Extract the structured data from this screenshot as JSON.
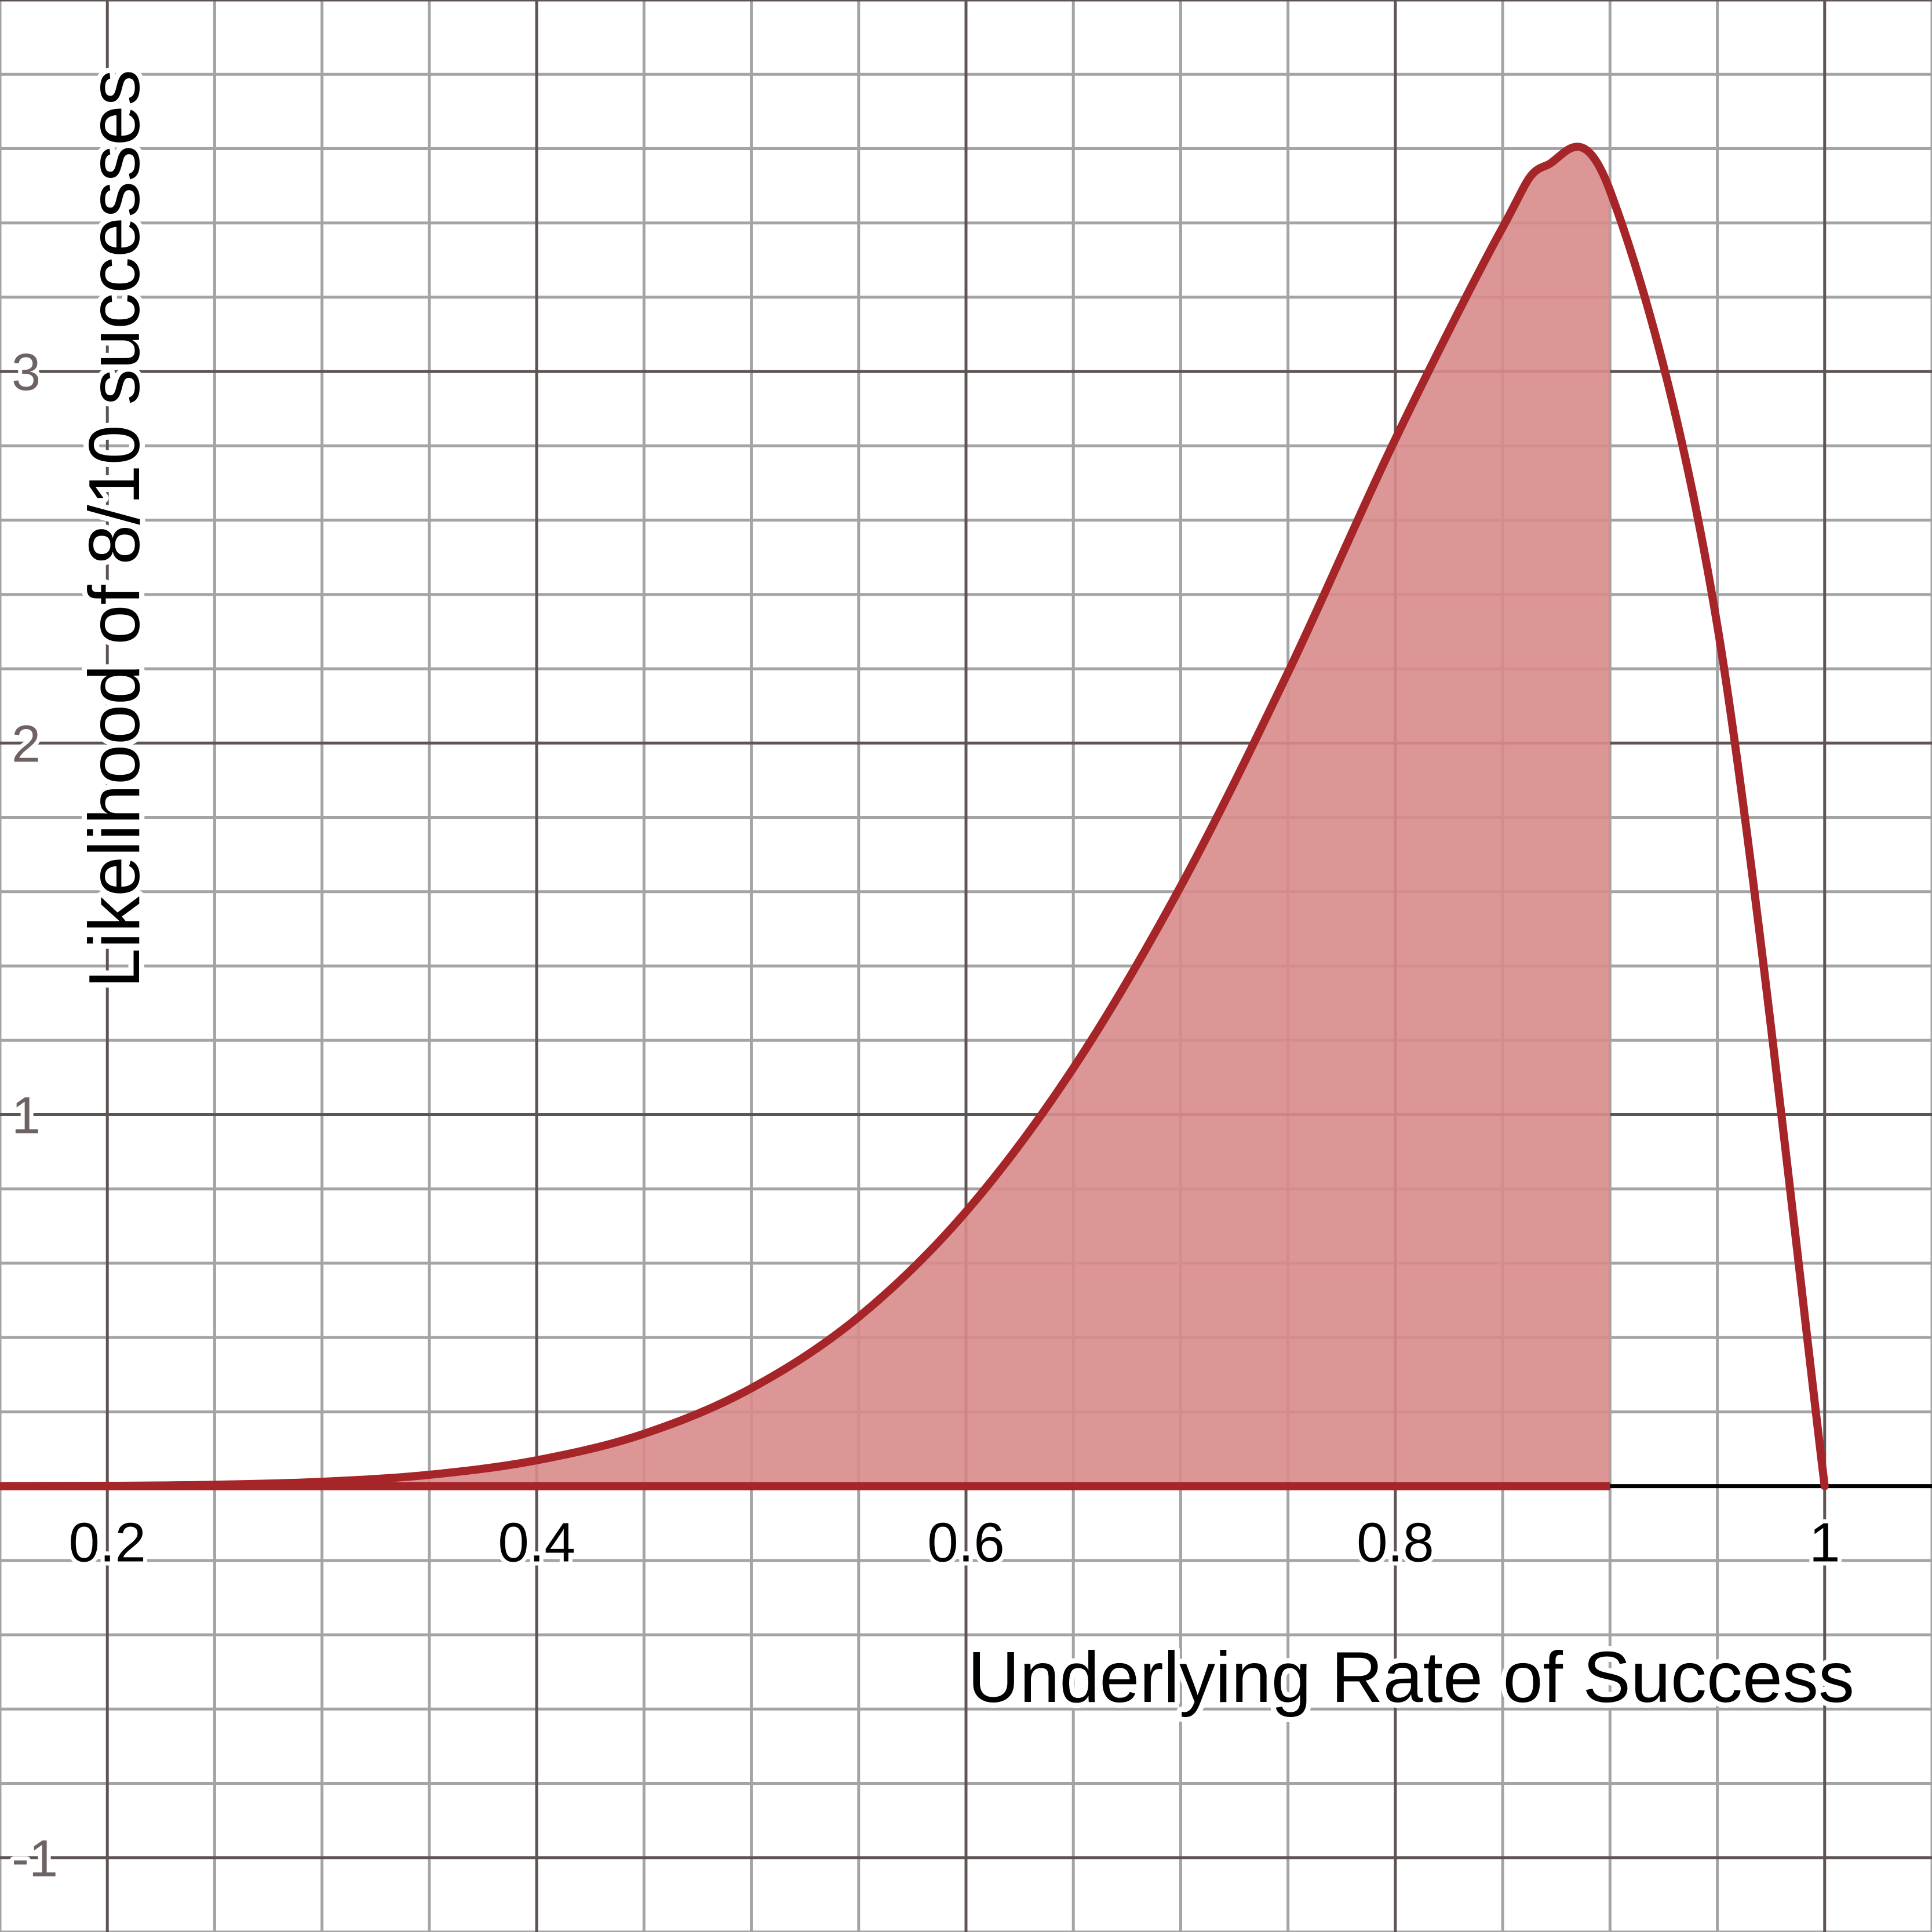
{
  "chart_data": {
    "type": "area",
    "xlabel": "Underlying Rate of Success",
    "ylabel": "Likelihood of 8/10 successes",
    "xlim": [
      0.15,
      1.05
    ],
    "ylim": [
      -1.2,
      4.0
    ],
    "x_ticks": [
      {
        "value": 0.2,
        "label": "0.2"
      },
      {
        "value": 0.4,
        "label": "0.4"
      },
      {
        "value": 0.6,
        "label": "0.6"
      },
      {
        "value": 0.8,
        "label": "0.8"
      },
      {
        "value": 1.0,
        "label": "1"
      }
    ],
    "y_ticks": [
      {
        "value": 3,
        "label": "3"
      },
      {
        "value": 2,
        "label": "2"
      },
      {
        "value": 1,
        "label": "1"
      },
      {
        "value": -1,
        "label": "-1"
      }
    ],
    "grid": true,
    "major_grid_x_step": 0.2,
    "minor_grid_x_step": 0.05,
    "major_grid_y_step": 1,
    "minor_grid_y_step": 0.2,
    "shaded_interval": [
      0.15,
      0.9
    ],
    "series": [
      {
        "x": [
          0.15,
          0.2,
          0.25,
          0.3,
          0.35,
          0.4,
          0.45,
          0.5,
          0.55,
          0.6,
          0.65,
          0.7,
          0.75,
          0.8,
          0.85,
          0.87,
          0.9,
          0.95,
          1.0
        ],
        "values": [
          0.0002,
          0.0009,
          0.0037,
          0.0117,
          0.0306,
          0.0696,
          0.141,
          0.2636,
          0.4554,
          0.7388,
          1.1253,
          1.6142,
          2.1901,
          2.8183,
          3.3878,
          3.5537,
          3.4868,
          2.3155,
          0.0
        ],
        "color": "#a52528"
      }
    ],
    "colors": {
      "curve": "#a52528",
      "fill": "#d98b8b",
      "axis": "#000000",
      "major_grid": "#5f5454",
      "minor_grid": "#a4a4a4"
    }
  }
}
